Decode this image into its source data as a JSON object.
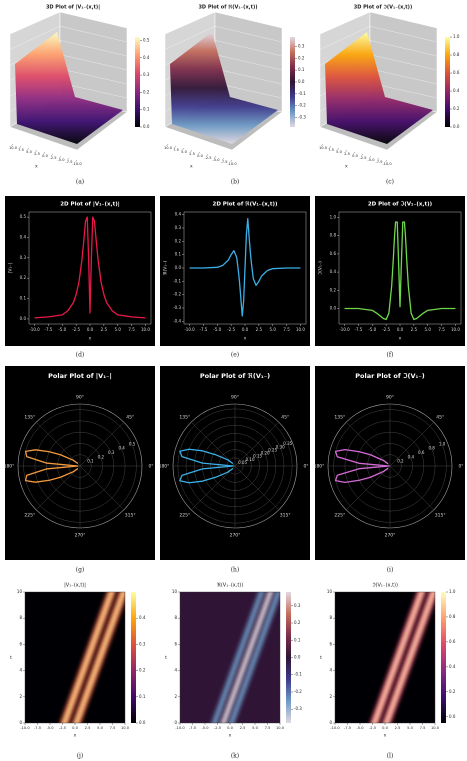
{
  "chart_data": [
    {
      "type": "surface3d",
      "title": "3D Plot of |V₁₋(x,t)|",
      "caption": "(a)",
      "xlabel": "x",
      "xlim": [
        -10,
        10
      ],
      "xticks": [
        {
          "value": 10,
          "label": "10.0"
        },
        7.5,
        {
          "value": 5,
          "label": "5.0"
        },
        2.5,
        {
          "value": 0,
          "label": "0.0"
        },
        -2.5,
        {
          "value": -5,
          "label": "-5.0"
        },
        -7.5,
        {
          "value": -10,
          "label": "-10.0"
        }
      ],
      "clim": [
        0,
        0.52
      ],
      "cticks": [
        {
          "value": 0,
          "label": "0.0"
        },
        0.1,
        0.2,
        0.3,
        0.4,
        0.5
      ],
      "colormap": [
        "#000004",
        "#3b0f70",
        "#8c2981",
        "#de4968",
        "#fe9f6d",
        "#fcfdbf"
      ]
    },
    {
      "type": "surface3d",
      "title": "3D Plot of ℜ(V₁₋(x,t))",
      "caption": "(b)",
      "xlabel": "x",
      "xlim": [
        -10,
        10
      ],
      "xticks": [
        {
          "value": 10,
          "label": "10.0"
        },
        7.5,
        {
          "value": 5,
          "label": "5.0"
        },
        2.5,
        {
          "value": 0,
          "label": "0.0"
        },
        -2.5,
        {
          "value": -5,
          "label": "-5.0"
        },
        -7.5,
        {
          "value": -10,
          "label": "-10.0"
        }
      ],
      "clim": [
        -0.38,
        0.38
      ],
      "cticks": [
        -0.3,
        -0.2,
        -0.1,
        {
          "value": 0,
          "label": "0.0"
        },
        0.1,
        0.2,
        0.3
      ],
      "colormap": [
        "#e2d9e2",
        "#6d9ac5",
        "#3e3a8c",
        "#2f1436",
        "#7d2d4a",
        "#c46e5c",
        "#e2d9e2"
      ]
    },
    {
      "type": "surface3d",
      "title": "3D Plot of ℑ(V₁₋(x,t))",
      "caption": "(c)",
      "xlabel": "x",
      "xlim": [
        -10,
        10
      ],
      "xticks": [
        {
          "value": 10,
          "label": "10.0"
        },
        7.5,
        {
          "value": 5,
          "label": "5.0"
        },
        2.5,
        {
          "value": 0,
          "label": "0.0"
        },
        -2.5,
        {
          "value": -5,
          "label": "-5.0"
        },
        -7.5,
        {
          "value": -10,
          "label": "-10.0"
        }
      ],
      "clim": [
        0,
        1.0
      ],
      "cticks": [
        {
          "value": 0,
          "label": "0.0"
        },
        0.2,
        0.4,
        0.6,
        0.8,
        {
          "value": 1,
          "label": "1.0"
        }
      ],
      "colormap": [
        "#000004",
        "#420a68",
        "#932667",
        "#dd513a",
        "#fca50a",
        "#fcffa4"
      ]
    },
    {
      "type": "line",
      "title": "2D Plot of |V₁₋(x,t)|",
      "caption": "(d)",
      "xlabel": "x",
      "ylabel": "|V₁₋|",
      "color": "#e8194a",
      "x": [
        -10,
        -7.5,
        -5,
        -4,
        -3,
        -2.5,
        -2,
        -1.5,
        -1.2,
        -1,
        -0.8,
        -0.5,
        -0.25,
        0,
        0.25,
        0.5,
        0.8,
        1,
        1.2,
        1.5,
        2,
        2.5,
        3,
        4,
        5,
        7.5,
        10
      ],
      "values": [
        0.005,
        0.01,
        0.02,
        0.04,
        0.08,
        0.12,
        0.18,
        0.28,
        0.36,
        0.42,
        0.48,
        0.5,
        0.3,
        0.03,
        0.3,
        0.5,
        0.48,
        0.42,
        0.36,
        0.28,
        0.18,
        0.12,
        0.08,
        0.04,
        0.02,
        0.01,
        0.005
      ],
      "xlim": [
        -11,
        11
      ],
      "xticks": [
        {
          "value": -10,
          "label": "-10.0"
        },
        -7.5,
        {
          "value": -5,
          "label": "-5.0"
        },
        -2.5,
        {
          "value": 0,
          "label": "0.0"
        },
        2.5,
        {
          "value": 5,
          "label": "5.0"
        },
        7.5,
        {
          "value": 10,
          "label": "10.0"
        }
      ],
      "ylim": [
        -0.025,
        0.525
      ],
      "yticks": [
        {
          "value": 0,
          "label": "0.0"
        },
        0.1,
        0.2,
        0.3,
        0.4,
        0.5
      ]
    },
    {
      "type": "line",
      "title": "2D Plot of ℜ(V₁₋(x,t))",
      "caption": "(e)",
      "xlabel": "x",
      "ylabel": "ℜ(V₁₋)",
      "color": "#3ab0e8",
      "x": [
        -10,
        -7.5,
        -5,
        -4,
        -3,
        -2.5,
        -2,
        -1.5,
        -1.2,
        -1,
        -0.8,
        -0.5,
        -0.25,
        0,
        0.25,
        0.5,
        0.8,
        1,
        1.2,
        1.5,
        2,
        2.5,
        3,
        4,
        5,
        7.5,
        10
      ],
      "values": [
        0,
        0,
        0.005,
        0.02,
        0.06,
        0.1,
        0.13,
        0.08,
        -0.02,
        -0.1,
        -0.2,
        -0.36,
        -0.25,
        0,
        0.25,
        0.37,
        0.2,
        0.1,
        0.02,
        -0.08,
        -0.13,
        -0.1,
        -0.06,
        -0.02,
        -0.005,
        0,
        0
      ],
      "xlim": [
        -11,
        11
      ],
      "xticks": [
        {
          "value": -10,
          "label": "-10.0"
        },
        -7.5,
        {
          "value": -5,
          "label": "-5.0"
        },
        -2.5,
        {
          "value": 0,
          "label": "0.0"
        },
        2.5,
        {
          "value": 5,
          "label": "5.0"
        },
        7.5,
        {
          "value": 10,
          "label": "10.0"
        }
      ],
      "ylim": [
        -0.42,
        0.42
      ],
      "yticks": [
        -0.4,
        -0.3,
        -0.2,
        -0.1,
        {
          "value": 0,
          "label": "0.0"
        },
        0.1,
        0.2,
        0.3,
        0.4
      ]
    },
    {
      "type": "line",
      "title": "2D Plot of ℑ(V₁₋(x,t))",
      "caption": "(f)",
      "xlabel": "x",
      "ylabel": "ℑ(V₁₋)",
      "color": "#6fd84a",
      "x": [
        -10,
        -7.5,
        -5,
        -4,
        -3,
        -2.5,
        -2,
        -1.5,
        -1.2,
        -1,
        -0.8,
        -0.5,
        -0.25,
        0,
        0.25,
        0.5,
        0.8,
        1,
        1.2,
        1.5,
        2,
        2.5,
        3,
        4,
        5,
        7.5,
        10
      ],
      "values": [
        0,
        0,
        -0.02,
        -0.06,
        -0.11,
        -0.12,
        -0.05,
        0.25,
        0.55,
        0.78,
        0.95,
        0.95,
        0.5,
        0.02,
        0.5,
        0.95,
        0.95,
        0.78,
        0.55,
        0.25,
        -0.05,
        -0.12,
        -0.11,
        -0.06,
        -0.02,
        0,
        0
      ],
      "xlim": [
        -11,
        11
      ],
      "xticks": [
        {
          "value": -10,
          "label": "-10.0"
        },
        -7.5,
        {
          "value": -5,
          "label": "-5.0"
        },
        -2.5,
        {
          "value": 0,
          "label": "0.0"
        },
        2.5,
        {
          "value": 5,
          "label": "5.0"
        },
        7.5,
        {
          "value": 10,
          "label": "10.0"
        }
      ],
      "ylim": [
        -0.17,
        1.06
      ],
      "yticks": [
        {
          "value": 0,
          "label": "0.0"
        },
        0.2,
        0.4,
        0.6,
        0.8,
        {
          "value": 1,
          "label": "1.0"
        }
      ]
    },
    {
      "type": "polar",
      "title": "Polar Plot of |V₁₋|",
      "caption": "(g)",
      "color": "#f39a3c",
      "theta": [
        130,
        140,
        150,
        155,
        160,
        165,
        170,
        175,
        180,
        185,
        190,
        195,
        200,
        205,
        210,
        220,
        230
      ],
      "values": [
        0.03,
        0.08,
        0.2,
        0.3,
        0.42,
        0.5,
        0.48,
        0.3,
        0.02,
        0.3,
        0.48,
        0.5,
        0.42,
        0.3,
        0.2,
        0.08,
        0.03
      ],
      "rlim": [
        0,
        0.55
      ],
      "rticks": [
        0.1,
        0.2,
        0.3,
        0.4,
        0.5
      ],
      "thetaticks": [
        {
          "value": 0,
          "label": "0°"
        },
        {
          "value": 45,
          "label": "45°"
        },
        {
          "value": 90,
          "label": "90°"
        },
        {
          "value": 135,
          "label": "135°"
        },
        {
          "value": 180,
          "label": "180°"
        },
        {
          "value": 225,
          "label": "225°"
        },
        {
          "value": 270,
          "label": "270°"
        },
        {
          "value": 315,
          "label": "315°"
        }
      ]
    },
    {
      "type": "polar",
      "title": "Polar Plot of ℜ(V₁₋)",
      "caption": "(h)",
      "color": "#3ab0e8",
      "theta": [
        130,
        140,
        150,
        155,
        160,
        165,
        170,
        175,
        180,
        185,
        190,
        195,
        200,
        205,
        210,
        220,
        230
      ],
      "values": [
        0.02,
        0.06,
        0.14,
        0.22,
        0.3,
        0.35,
        0.33,
        0.2,
        0.01,
        0.2,
        0.33,
        0.35,
        0.3,
        0.22,
        0.14,
        0.06,
        0.02
      ],
      "rlim": [
        0,
        0.38
      ],
      "rticks": [
        0.05,
        {
          "value": 0.1,
          "label": "0.10"
        },
        0.15,
        {
          "value": 0.2,
          "label": "0.20"
        },
        0.25,
        {
          "value": 0.3,
          "label": "0.30"
        },
        0.35
      ],
      "thetaticks": [
        {
          "value": 0,
          "label": "0°"
        },
        {
          "value": 45,
          "label": "45°"
        },
        {
          "value": 90,
          "label": "90°"
        },
        {
          "value": 135,
          "label": "135°"
        },
        {
          "value": 180,
          "label": "180°"
        },
        {
          "value": 225,
          "label": "225°"
        },
        {
          "value": 270,
          "label": "270°"
        },
        {
          "value": 315,
          "label": "315°"
        }
      ]
    },
    {
      "type": "polar",
      "title": "Polar Plot of ℑ(V₁₋)",
      "caption": "(i)",
      "color": "#d66ad9",
      "theta": [
        130,
        140,
        150,
        155,
        160,
        165,
        170,
        175,
        180,
        185,
        190,
        195,
        200,
        205,
        210,
        220,
        230
      ],
      "values": [
        0.05,
        0.15,
        0.4,
        0.6,
        0.85,
        1.0,
        0.95,
        0.55,
        0.02,
        0.55,
        0.95,
        1.0,
        0.85,
        0.6,
        0.4,
        0.15,
        0.05
      ],
      "rlim": [
        0,
        1.1
      ],
      "rticks": [
        0.2,
        0.4,
        0.6,
        0.8,
        {
          "value": 1,
          "label": "1.0"
        }
      ],
      "thetaticks": [
        {
          "value": 0,
          "label": "0°"
        },
        {
          "value": 45,
          "label": "45°"
        },
        {
          "value": 90,
          "label": "90°"
        },
        {
          "value": 135,
          "label": "135°"
        },
        {
          "value": 180,
          "label": "180°"
        },
        {
          "value": 225,
          "label": "225°"
        },
        {
          "value": 270,
          "label": "270°"
        },
        {
          "value": 315,
          "label": "315°"
        }
      ]
    },
    {
      "type": "heatmap",
      "title": "|V₁₋(x,t)|",
      "caption": "(j)",
      "xlabel": "x",
      "ylabel": "t",
      "xlim": [
        -10,
        10
      ],
      "xticks": [
        {
          "value": -10,
          "label": "-10.0"
        },
        -7.5,
        {
          "value": -5,
          "label": "-5.0"
        },
        -2.5,
        {
          "value": 0,
          "label": "0.0"
        },
        2.5,
        {
          "value": 5,
          "label": "5.0"
        },
        7.5,
        {
          "value": 10,
          "label": "10.0"
        }
      ],
      "ylim": [
        0,
        10
      ],
      "yticks": [
        0,
        2,
        4,
        6,
        8,
        10
      ],
      "clim": [
        0,
        0.5
      ],
      "cticks": [
        {
          "value": 0,
          "label": "0.0"
        },
        0.1,
        0.2,
        0.3,
        0.4
      ],
      "colormap": [
        "#000004",
        "#420a68",
        "#932667",
        "#dd513a",
        "#fca50a",
        "#fcffa4"
      ]
    },
    {
      "type": "heatmap",
      "title": "ℜ(V₁₋(x,t))",
      "caption": "(k)",
      "xlabel": "x",
      "ylabel": "t",
      "xlim": [
        -10,
        10
      ],
      "xticks": [
        {
          "value": -10,
          "label": "-10.0"
        },
        -7.5,
        {
          "value": -5,
          "label": "-5.0"
        },
        -2.5,
        {
          "value": 0,
          "label": "0.0"
        },
        2.5,
        {
          "value": 5,
          "label": "5.0"
        },
        7.5,
        {
          "value": 10,
          "label": "10.0"
        }
      ],
      "ylim": [
        0,
        10
      ],
      "yticks": [
        0,
        2,
        4,
        6,
        8,
        10
      ],
      "clim": [
        -0.38,
        0.38
      ],
      "cticks": [
        -0.3,
        -0.2,
        -0.1,
        {
          "value": 0,
          "label": "0.0"
        },
        0.1,
        0.2,
        0.3
      ],
      "colormap": [
        "#e2d9e2",
        "#6d9ac5",
        "#3e3a8c",
        "#2f1436",
        "#7d2d4a",
        "#c46e5c",
        "#e2d9e2"
      ]
    },
    {
      "type": "heatmap",
      "title": "ℑ(V₁₋(x,t))",
      "caption": "(l)",
      "xlabel": "x",
      "ylabel": "t",
      "xlim": [
        -10,
        10
      ],
      "xticks": [
        {
          "value": -10,
          "label": "-10.0"
        },
        -7.5,
        {
          "value": -5,
          "label": "-5.0"
        },
        -2.5,
        {
          "value": 0,
          "label": "0.0"
        },
        2.5,
        {
          "value": 5,
          "label": "5.0"
        },
        7.5,
        {
          "value": 10,
          "label": "10.0"
        }
      ],
      "ylim": [
        0,
        10
      ],
      "yticks": [
        0,
        2,
        4,
        6,
        8,
        10
      ],
      "clim": [
        -0.05,
        1.0
      ],
      "cticks": [
        {
          "value": 0,
          "label": "0.0"
        },
        0.2,
        0.4,
        0.6,
        0.8,
        {
          "value": 1,
          "label": "1.0"
        }
      ],
      "colormap": [
        "#000004",
        "#3b0f70",
        "#8c2981",
        "#de4968",
        "#fe9f6d",
        "#fcfdbf"
      ]
    }
  ]
}
